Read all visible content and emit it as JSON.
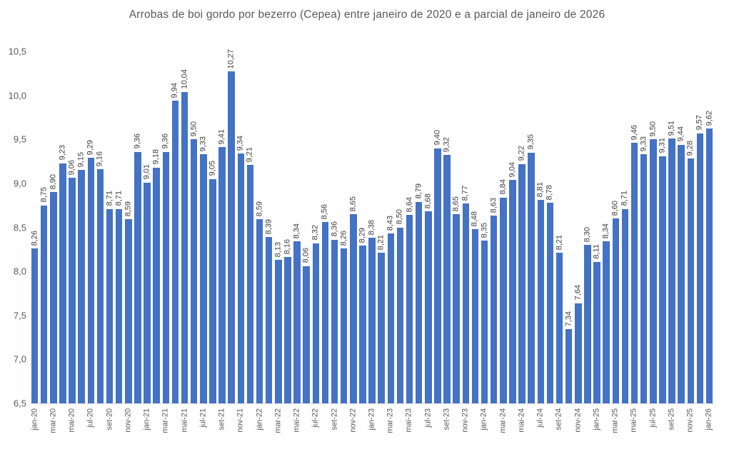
{
  "title": "Arrobas de boi gordo por bezerro (Cepea) entre janeiro de 2020 e a parcial de janeiro de 2026",
  "colors": {
    "bar": "#4472C4",
    "title_text": "#595959",
    "axis_text": "#595959",
    "data_label_text": "#404040",
    "axis_line": "#D9D9D9",
    "background": "#FFFFFF"
  },
  "chart_data": {
    "type": "bar",
    "title": "Arrobas de boi gordo por bezerro (Cepea) entre janeiro de 2020 e a parcial de janeiro de 2026",
    "xlabel": "",
    "ylabel": "",
    "ylim": [
      6.5,
      10.5
    ],
    "grid": false,
    "legend": "none",
    "y_ticks": [
      "10,5",
      "10,0",
      "9,5",
      "9,0",
      "8,5",
      "8,0",
      "7,5",
      "7,0",
      "6,5"
    ],
    "y_tick_values": [
      10.5,
      10.0,
      9.5,
      9.0,
      8.5,
      8.0,
      7.5,
      7.0,
      6.5
    ],
    "x_tick_labels": [
      "jan-20",
      "mar-20",
      "mai-20",
      "jul-20",
      "set-20",
      "nov-20",
      "jan-21",
      "mar-21",
      "mai-21",
      "jul-21",
      "set-21",
      "nov-21",
      "jan-22",
      "mar-22",
      "mai-22",
      "jul-22",
      "set-22",
      "nov-22",
      "jan-23",
      "mar-23",
      "mai-23",
      "jul-23",
      "set-23",
      "nov-23",
      "jan-24",
      "mar-24",
      "mai-24",
      "jul-24",
      "set-24",
      "nov-24",
      "jan-25",
      "mar-25",
      "mai-25",
      "jul-25",
      "set-25",
      "nov-25",
      "jan-26"
    ],
    "x_tick_every": 2,
    "categories": [
      "jan-20",
      "fev-20",
      "mar-20",
      "abr-20",
      "mai-20",
      "jun-20",
      "jul-20",
      "ago-20",
      "set-20",
      "out-20",
      "nov-20",
      "dez-20",
      "jan-21",
      "fev-21",
      "mar-21",
      "abr-21",
      "mai-21",
      "jun-21",
      "jul-21",
      "ago-21",
      "set-21",
      "out-21",
      "nov-21",
      "dez-21",
      "jan-22",
      "fev-22",
      "mar-22",
      "abr-22",
      "mai-22",
      "jun-22",
      "jul-22",
      "ago-22",
      "set-22",
      "out-22",
      "nov-22",
      "dez-22",
      "jan-23",
      "fev-23",
      "mar-23",
      "abr-23",
      "mai-23",
      "jun-23",
      "jul-23",
      "ago-23",
      "set-23",
      "out-23",
      "nov-23",
      "dez-23",
      "jan-24",
      "fev-24",
      "mar-24",
      "abr-24",
      "mai-24",
      "jun-24",
      "jul-24",
      "ago-24",
      "set-24",
      "out-24",
      "nov-24",
      "dez-24",
      "jan-25",
      "fev-25",
      "mar-25",
      "abr-25",
      "mai-25",
      "jun-25",
      "jul-25",
      "ago-25",
      "set-25",
      "out-25",
      "nov-25",
      "dez-25",
      "jan-26"
    ],
    "values": [
      8.26,
      8.75,
      8.9,
      9.23,
      9.06,
      9.15,
      9.29,
      9.16,
      8.71,
      8.71,
      8.59,
      9.36,
      9.01,
      9.18,
      9.36,
      9.94,
      10.04,
      9.5,
      9.33,
      9.05,
      9.41,
      10.27,
      9.34,
      9.21,
      8.59,
      8.39,
      8.13,
      8.16,
      8.34,
      8.06,
      8.32,
      8.56,
      8.36,
      8.26,
      8.65,
      8.29,
      8.38,
      8.21,
      8.43,
      8.5,
      8.64,
      8.79,
      8.68,
      9.4,
      9.32,
      8.65,
      8.77,
      8.48,
      8.35,
      8.63,
      8.84,
      9.04,
      9.22,
      9.35,
      8.81,
      8.78,
      8.21,
      7.34,
      7.64,
      8.3,
      8.11,
      8.34,
      8.6,
      8.71,
      9.46,
      9.33,
      9.5,
      9.31,
      9.51,
      9.44,
      9.28,
      9.57,
      9.62
    ],
    "value_labels": [
      "8,26",
      "8,75",
      "8,90",
      "9,23",
      "9,06",
      "9,15",
      "9,29",
      "9,16",
      "8,71",
      "8,71",
      "8,59",
      "9,36",
      "9,01",
      "9,18",
      "9,36",
      "9,94",
      "10,04",
      "9,50",
      "9,33",
      "9,05",
      "9,41",
      "10,27",
      "9,34",
      "9,21",
      "8,59",
      "8,39",
      "8,13",
      "8,16",
      "8,34",
      "8,06",
      "8,32",
      "8,56",
      "8,36",
      "8,26",
      "8,65",
      "8,29",
      "8,38",
      "8,21",
      "8,43",
      "8,50",
      "8,64",
      "8,79",
      "8,68",
      "9,40",
      "9,32",
      "8,65",
      "8,77",
      "8,48",
      "8,35",
      "8,63",
      "8,84",
      "9,04",
      "9,22",
      "9,35",
      "8,81",
      "8,78",
      "8,21",
      "7,34",
      "7,64",
      "8,30",
      "8,11",
      "8,34",
      "8,60",
      "8,71",
      "9,46",
      "9,33",
      "9,50",
      "9,31",
      "9,51",
      "9,44",
      "9,28",
      "9,57",
      "9,62"
    ]
  }
}
